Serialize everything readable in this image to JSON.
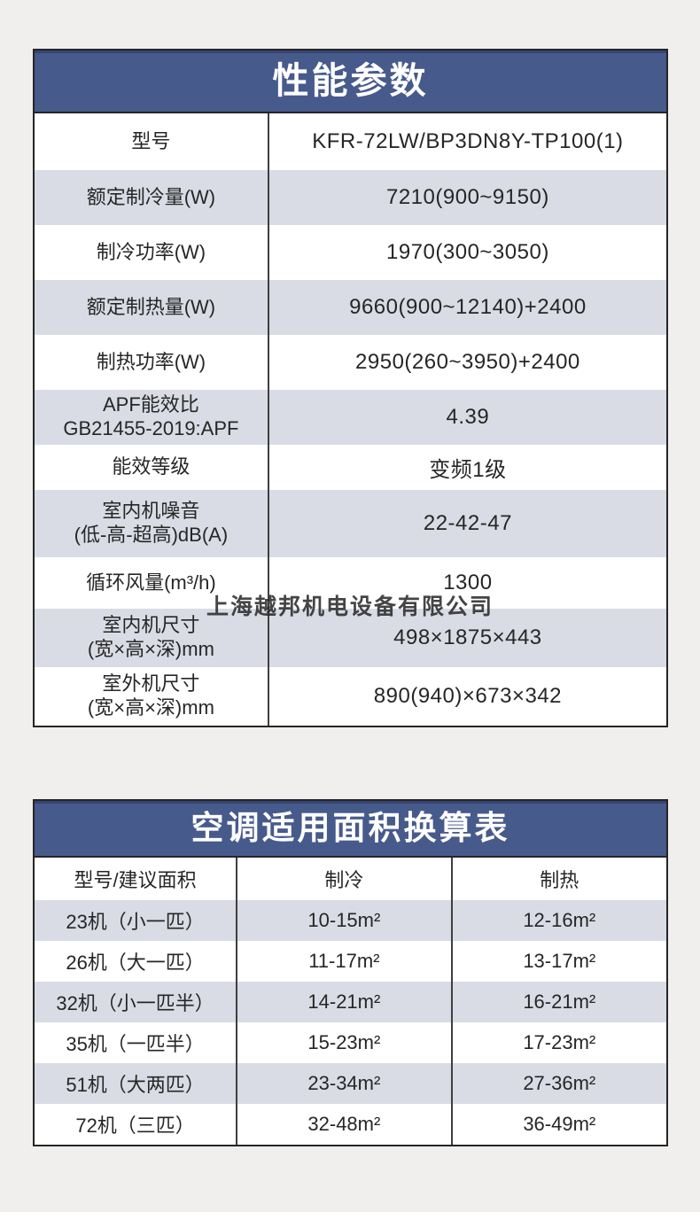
{
  "page": {
    "watermark": "上海越邦机电设备有限公司",
    "colors": {
      "background": "#f0efee",
      "header_navy": "#475a8c",
      "row_alt": "#d9dce4",
      "border": "#252525",
      "text": "#262626",
      "title_text": "#ffffff"
    }
  },
  "spec_table": {
    "title": "性能参数",
    "rows": [
      {
        "label": "型号",
        "value": "KFR-72LW/BP3DN8Y-TP100(1)"
      },
      {
        "label": "额定制冷量(W)",
        "value": "7210(900~9150)"
      },
      {
        "label": "制冷功率(W)",
        "value": "1970(300~3050)"
      },
      {
        "label": "额定制热量(W)",
        "value": "9660(900~12140)+2400"
      },
      {
        "label": "制热功率(W)",
        "value": "2950(260~3950)+2400"
      },
      {
        "label": "APF能效比\nGB21455-2019:APF",
        "value": "4.39"
      },
      {
        "label": "能效等级",
        "value": "变频1级"
      },
      {
        "label": "室内机噪音\n(低-高-超高)dB(A)",
        "value": "22-42-47"
      },
      {
        "label": "循环风量(m³/h)",
        "value": "1300"
      },
      {
        "label": "室内机尺寸\n(宽×高×深)mm",
        "value": "498×1875×443"
      },
      {
        "label": "室外机尺寸\n(宽×高×深)mm",
        "value": "890(940)×673×342"
      }
    ]
  },
  "area_table": {
    "title": "空调适用面积换算表",
    "columns": [
      "型号/建议面积",
      "制冷",
      "制热"
    ],
    "rows": [
      {
        "model": "23机（小一匹）",
        "cooling": "10-15m²",
        "heating": "12-16m²"
      },
      {
        "model": "26机（大一匹）",
        "cooling": "11-17m²",
        "heating": "13-17m²"
      },
      {
        "model": "32机（小一匹半）",
        "cooling": "14-21m²",
        "heating": "16-21m²"
      },
      {
        "model": "35机（一匹半）",
        "cooling": "15-23m²",
        "heating": "17-23m²"
      },
      {
        "model": "51机（大两匹）",
        "cooling": "23-34m²",
        "heating": "27-36m²"
      },
      {
        "model": "72机（三匹）",
        "cooling": "32-48m²",
        "heating": "36-49m²"
      }
    ]
  }
}
